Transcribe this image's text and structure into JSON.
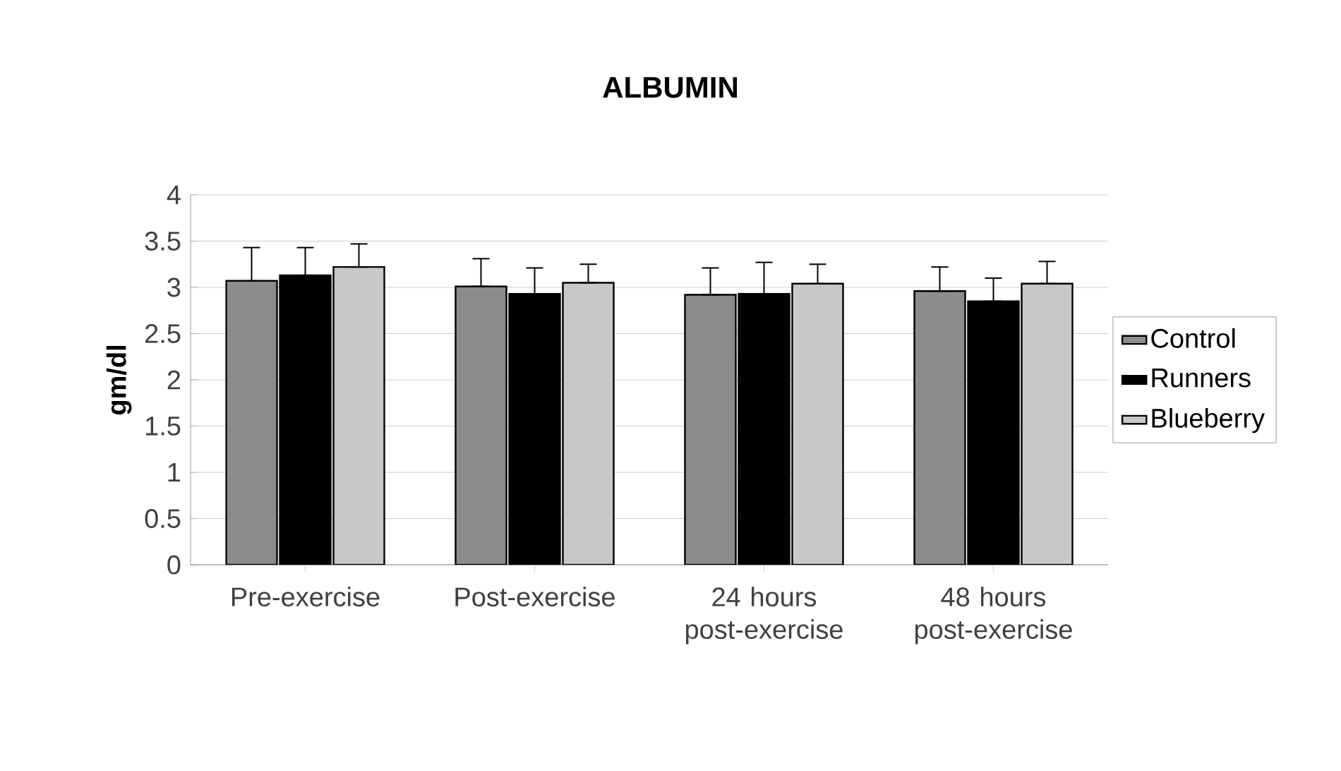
{
  "chart_data": {
    "type": "bar",
    "title": "ALBUMIN",
    "ylabel": "gm/dl",
    "categories": [
      "Pre-exercise",
      "Post-exercise",
      "24 hours post-exercise",
      "48 hours post-exercise"
    ],
    "series": [
      {
        "name": "Control",
        "color": "#8c8c8c",
        "values": [
          3.07,
          3.01,
          2.92,
          2.96
        ],
        "errors": [
          [
            3.07,
            3.43
          ],
          [
            3.01,
            3.31
          ],
          [
            2.92,
            3.21
          ],
          [
            2.96,
            3.22
          ]
        ]
      },
      {
        "name": "Runners",
        "color": "#000000",
        "values": [
          3.13,
          2.93,
          2.93,
          2.85
        ],
        "errors": [
          [
            3.13,
            3.43
          ],
          [
            2.93,
            3.21
          ],
          [
            2.93,
            3.27
          ],
          [
            2.85,
            3.1
          ]
        ]
      },
      {
        "name": "Blueberry",
        "color": "#c8c8c8",
        "values": [
          3.22,
          3.05,
          3.04,
          3.04
        ],
        "errors": [
          [
            3.22,
            3.47
          ],
          [
            3.05,
            3.25
          ],
          [
            3.04,
            3.25
          ],
          [
            3.04,
            3.28
          ]
        ]
      }
    ],
    "ylim": [
      0,
      4
    ],
    "yticks": [
      0,
      0.5,
      1,
      1.5,
      2,
      2.5,
      3,
      3.5,
      4
    ],
    "grid": "y",
    "legend": "right"
  }
}
